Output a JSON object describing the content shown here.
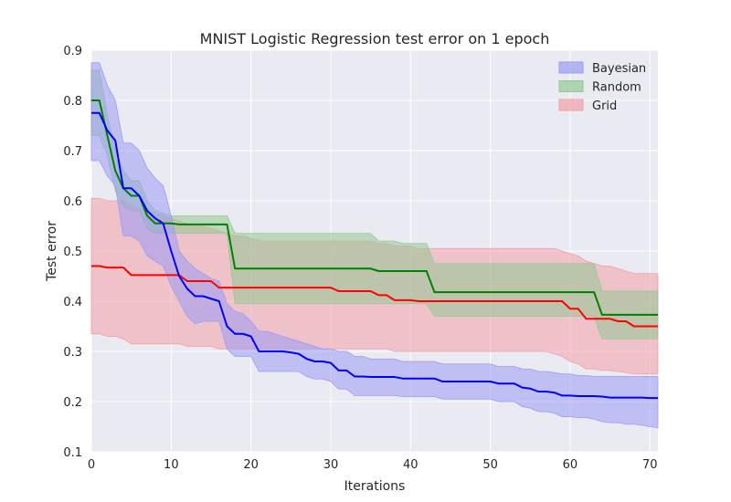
{
  "chart_data": {
    "type": "line",
    "title": "MNIST Logistic Regression test error on 1 epoch",
    "xlabel": "Iterations",
    "ylabel": "Test error",
    "xlim": [
      0,
      71
    ],
    "ylim": [
      0.1,
      0.9
    ],
    "xticks": [
      "0",
      "10",
      "20",
      "30",
      "40",
      "50",
      "60",
      "70"
    ],
    "yticks": [
      "0.1",
      "0.2",
      "0.3",
      "0.4",
      "0.5",
      "0.6",
      "0.7",
      "0.8",
      "0.9"
    ],
    "grid": true,
    "legend_position": "top-right",
    "legend": [
      "Bayesian",
      "Random",
      "Grid"
    ],
    "series": [
      {
        "name": "Bayesian",
        "line_color": "#0000ff",
        "band_color": "#9b9bf5",
        "x": [
          0,
          1,
          2,
          3,
          4,
          5,
          6,
          7,
          8,
          9,
          10,
          11,
          12,
          13,
          14,
          15,
          16,
          17,
          18,
          19,
          20,
          21,
          22,
          23,
          24,
          25,
          26,
          27,
          28,
          29,
          30,
          31,
          32,
          33,
          34,
          35,
          36,
          37,
          38,
          39,
          40,
          41,
          42,
          43,
          44,
          45,
          46,
          47,
          48,
          49,
          50,
          51,
          52,
          53,
          54,
          55,
          56,
          57,
          58,
          59,
          60,
          61,
          62,
          63,
          64,
          65,
          66,
          67,
          68,
          69,
          70,
          71
        ],
        "mean": [
          0.775,
          0.775,
          0.74,
          0.72,
          0.625,
          0.625,
          0.61,
          0.58,
          0.565,
          0.555,
          0.5,
          0.45,
          0.425,
          0.41,
          0.41,
          0.405,
          0.4,
          0.35,
          0.335,
          0.335,
          0.33,
          0.3,
          0.3,
          0.3,
          0.3,
          0.298,
          0.295,
          0.285,
          0.28,
          0.28,
          0.277,
          0.262,
          0.262,
          0.25,
          0.25,
          0.249,
          0.249,
          0.249,
          0.249,
          0.246,
          0.246,
          0.246,
          0.246,
          0.246,
          0.24,
          0.24,
          0.24,
          0.24,
          0.24,
          0.24,
          0.24,
          0.236,
          0.236,
          0.236,
          0.228,
          0.226,
          0.22,
          0.22,
          0.218,
          0.212,
          0.212,
          0.211,
          0.211,
          0.211,
          0.21,
          0.208,
          0.208,
          0.208,
          0.208,
          0.208,
          0.207,
          0.207
        ],
        "upper": [
          0.875,
          0.875,
          0.83,
          0.8,
          0.715,
          0.715,
          0.7,
          0.665,
          0.645,
          0.63,
          0.57,
          0.5,
          0.48,
          0.465,
          0.455,
          0.445,
          0.44,
          0.395,
          0.38,
          0.375,
          0.36,
          0.34,
          0.34,
          0.335,
          0.33,
          0.325,
          0.32,
          0.315,
          0.31,
          0.305,
          0.305,
          0.3,
          0.3,
          0.29,
          0.29,
          0.285,
          0.285,
          0.285,
          0.285,
          0.28,
          0.28,
          0.28,
          0.28,
          0.28,
          0.275,
          0.275,
          0.275,
          0.275,
          0.275,
          0.275,
          0.275,
          0.27,
          0.27,
          0.27,
          0.265,
          0.265,
          0.26,
          0.26,
          0.258,
          0.255,
          0.255,
          0.252,
          0.252,
          0.25,
          0.25,
          0.25,
          0.25,
          0.25,
          0.25,
          0.25,
          0.25,
          0.25
        ],
        "lower": [
          0.68,
          0.68,
          0.65,
          0.63,
          0.53,
          0.53,
          0.52,
          0.49,
          0.48,
          0.47,
          0.43,
          0.4,
          0.37,
          0.355,
          0.36,
          0.36,
          0.36,
          0.305,
          0.29,
          0.29,
          0.29,
          0.26,
          0.26,
          0.26,
          0.26,
          0.26,
          0.26,
          0.25,
          0.245,
          0.245,
          0.24,
          0.225,
          0.225,
          0.212,
          0.212,
          0.212,
          0.212,
          0.212,
          0.212,
          0.21,
          0.21,
          0.21,
          0.21,
          0.21,
          0.205,
          0.205,
          0.205,
          0.205,
          0.205,
          0.205,
          0.205,
          0.2,
          0.2,
          0.2,
          0.19,
          0.187,
          0.18,
          0.18,
          0.177,
          0.17,
          0.17,
          0.168,
          0.168,
          0.165,
          0.16,
          0.158,
          0.158,
          0.155,
          0.155,
          0.153,
          0.15,
          0.148
        ]
      },
      {
        "name": "Random",
        "line_color": "#008000",
        "band_color": "#93c993",
        "x": [
          0,
          1,
          2,
          3,
          4,
          5,
          6,
          7,
          8,
          9,
          10,
          11,
          12,
          13,
          14,
          15,
          16,
          17,
          18,
          19,
          20,
          21,
          22,
          23,
          24,
          25,
          26,
          27,
          28,
          29,
          30,
          31,
          32,
          33,
          34,
          35,
          36,
          37,
          38,
          39,
          40,
          41,
          42,
          43,
          44,
          45,
          46,
          47,
          48,
          49,
          50,
          51,
          52,
          53,
          54,
          55,
          56,
          57,
          58,
          59,
          60,
          61,
          62,
          63,
          64,
          65,
          66,
          67,
          68,
          69,
          70,
          71
        ],
        "mean": [
          0.8,
          0.8,
          0.73,
          0.66,
          0.625,
          0.61,
          0.61,
          0.57,
          0.555,
          0.555,
          0.555,
          0.553,
          0.553,
          0.553,
          0.553,
          0.553,
          0.553,
          0.553,
          0.465,
          0.465,
          0.465,
          0.465,
          0.465,
          0.465,
          0.465,
          0.465,
          0.465,
          0.465,
          0.465,
          0.465,
          0.465,
          0.465,
          0.465,
          0.465,
          0.465,
          0.465,
          0.46,
          0.46,
          0.46,
          0.46,
          0.46,
          0.46,
          0.46,
          0.418,
          0.418,
          0.418,
          0.418,
          0.418,
          0.418,
          0.418,
          0.418,
          0.418,
          0.418,
          0.418,
          0.418,
          0.418,
          0.418,
          0.418,
          0.418,
          0.418,
          0.418,
          0.418,
          0.418,
          0.418,
          0.373,
          0.373,
          0.373,
          0.373,
          0.373,
          0.373,
          0.373,
          0.373
        ],
        "upper": [
          0.86,
          0.86,
          0.77,
          0.7,
          0.66,
          0.64,
          0.64,
          0.6,
          0.58,
          0.575,
          0.57,
          0.57,
          0.57,
          0.57,
          0.57,
          0.57,
          0.57,
          0.57,
          0.535,
          0.535,
          0.535,
          0.535,
          0.535,
          0.535,
          0.535,
          0.535,
          0.535,
          0.535,
          0.535,
          0.535,
          0.535,
          0.535,
          0.535,
          0.535,
          0.535,
          0.535,
          0.52,
          0.52,
          0.52,
          0.515,
          0.515,
          0.515,
          0.515,
          0.475,
          0.475,
          0.475,
          0.475,
          0.475,
          0.475,
          0.475,
          0.475,
          0.475,
          0.475,
          0.475,
          0.475,
          0.475,
          0.475,
          0.475,
          0.475,
          0.475,
          0.475,
          0.475,
          0.475,
          0.475,
          0.42,
          0.42,
          0.42,
          0.42,
          0.42,
          0.42,
          0.42,
          0.42
        ],
        "lower": [
          0.73,
          0.73,
          0.69,
          0.62,
          0.59,
          0.58,
          0.58,
          0.545,
          0.535,
          0.535,
          0.535,
          0.535,
          0.535,
          0.535,
          0.535,
          0.535,
          0.535,
          0.535,
          0.395,
          0.395,
          0.395,
          0.395,
          0.395,
          0.395,
          0.395,
          0.395,
          0.395,
          0.395,
          0.395,
          0.395,
          0.395,
          0.395,
          0.395,
          0.395,
          0.395,
          0.395,
          0.395,
          0.395,
          0.395,
          0.395,
          0.395,
          0.395,
          0.395,
          0.37,
          0.37,
          0.37,
          0.37,
          0.37,
          0.37,
          0.37,
          0.37,
          0.37,
          0.37,
          0.37,
          0.37,
          0.37,
          0.37,
          0.37,
          0.37,
          0.37,
          0.37,
          0.37,
          0.37,
          0.37,
          0.325,
          0.325,
          0.325,
          0.325,
          0.325,
          0.325,
          0.325,
          0.325
        ]
      },
      {
        "name": "Grid",
        "line_color": "#ff0000",
        "band_color": "#f0a0a6",
        "x": [
          0,
          1,
          2,
          3,
          4,
          5,
          6,
          7,
          8,
          9,
          10,
          11,
          12,
          13,
          14,
          15,
          16,
          17,
          18,
          19,
          20,
          21,
          22,
          23,
          24,
          25,
          26,
          27,
          28,
          29,
          30,
          31,
          32,
          33,
          34,
          35,
          36,
          37,
          38,
          39,
          40,
          41,
          42,
          43,
          44,
          45,
          46,
          47,
          48,
          49,
          50,
          51,
          52,
          53,
          54,
          55,
          56,
          57,
          58,
          59,
          60,
          61,
          62,
          63,
          64,
          65,
          66,
          67,
          68,
          69,
          70,
          71
        ],
        "mean": [
          0.47,
          0.47,
          0.467,
          0.467,
          0.467,
          0.452,
          0.452,
          0.452,
          0.452,
          0.452,
          0.452,
          0.452,
          0.44,
          0.44,
          0.44,
          0.44,
          0.427,
          0.427,
          0.427,
          0.427,
          0.427,
          0.427,
          0.427,
          0.427,
          0.427,
          0.427,
          0.427,
          0.427,
          0.427,
          0.427,
          0.427,
          0.42,
          0.42,
          0.42,
          0.42,
          0.42,
          0.412,
          0.412,
          0.402,
          0.402,
          0.402,
          0.4,
          0.4,
          0.4,
          0.4,
          0.4,
          0.4,
          0.4,
          0.4,
          0.4,
          0.4,
          0.4,
          0.4,
          0.4,
          0.4,
          0.4,
          0.4,
          0.4,
          0.4,
          0.4,
          0.385,
          0.385,
          0.365,
          0.365,
          0.365,
          0.365,
          0.36,
          0.36,
          0.35,
          0.35,
          0.35,
          0.35
        ],
        "upper": [
          0.605,
          0.605,
          0.6,
          0.6,
          0.6,
          0.59,
          0.585,
          0.58,
          0.575,
          0.57,
          0.565,
          0.56,
          0.555,
          0.55,
          0.55,
          0.545,
          0.54,
          0.535,
          0.53,
          0.53,
          0.525,
          0.52,
          0.52,
          0.52,
          0.52,
          0.52,
          0.52,
          0.52,
          0.52,
          0.52,
          0.52,
          0.52,
          0.52,
          0.52,
          0.52,
          0.52,
          0.515,
          0.515,
          0.51,
          0.51,
          0.51,
          0.505,
          0.505,
          0.505,
          0.505,
          0.505,
          0.505,
          0.505,
          0.505,
          0.505,
          0.505,
          0.505,
          0.505,
          0.505,
          0.505,
          0.505,
          0.505,
          0.505,
          0.505,
          0.5,
          0.495,
          0.49,
          0.48,
          0.475,
          0.47,
          0.47,
          0.465,
          0.46,
          0.455,
          0.455,
          0.455,
          0.455
        ],
        "lower": [
          0.335,
          0.335,
          0.33,
          0.33,
          0.325,
          0.315,
          0.315,
          0.315,
          0.315,
          0.315,
          0.315,
          0.315,
          0.31,
          0.31,
          0.31,
          0.31,
          0.305,
          0.305,
          0.305,
          0.305,
          0.305,
          0.305,
          0.305,
          0.305,
          0.305,
          0.305,
          0.305,
          0.305,
          0.305,
          0.305,
          0.305,
          0.305,
          0.305,
          0.305,
          0.305,
          0.305,
          0.305,
          0.305,
          0.3,
          0.3,
          0.3,
          0.3,
          0.3,
          0.3,
          0.3,
          0.3,
          0.3,
          0.3,
          0.3,
          0.3,
          0.3,
          0.3,
          0.3,
          0.3,
          0.3,
          0.3,
          0.3,
          0.3,
          0.295,
          0.29,
          0.28,
          0.275,
          0.265,
          0.265,
          0.262,
          0.262,
          0.26,
          0.258,
          0.255,
          0.255,
          0.255,
          0.255
        ]
      }
    ]
  }
}
